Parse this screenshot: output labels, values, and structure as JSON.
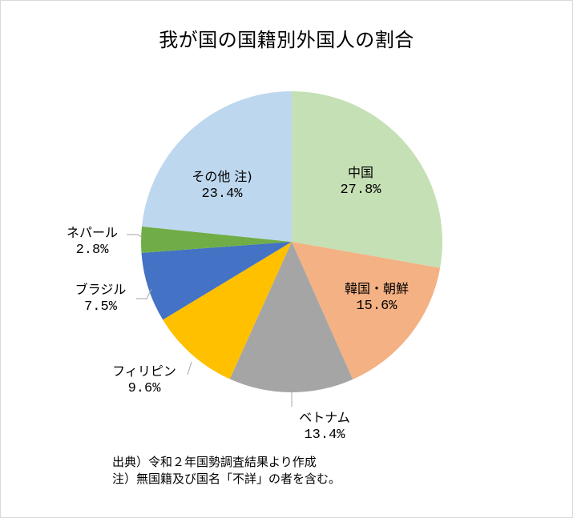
{
  "title": "我が国の国籍別外国人の割合",
  "notes": {
    "source": "出典）令和２年国勢調査結果より作成",
    "note": "注）無国籍及び国名「不詳」の者を含む。"
  },
  "labels": {
    "china": {
      "name": "中国",
      "pct": "27.8%"
    },
    "korea": {
      "name": "韓国・朝鮮",
      "pct": "15.6%"
    },
    "vietnam": {
      "name": "ベトナム",
      "pct": "13.4%"
    },
    "philippines": {
      "name": "フィリピン",
      "pct": "9.6%"
    },
    "brazil": {
      "name": "ブラジル",
      "pct": "7.5%"
    },
    "nepal": {
      "name": "ネパール",
      "pct": "2.8%"
    },
    "other": {
      "name": "その他 注)",
      "pct": "23.4%"
    }
  },
  "chart_data": {
    "type": "pie",
    "title": "我が国の国籍別外国人の割合",
    "categories": [
      "中国",
      "韓国・朝鮮",
      "ベトナム",
      "フィリピン",
      "ブラジル",
      "ネパール",
      "その他 注)"
    ],
    "values": [
      27.8,
      15.6,
      13.4,
      9.6,
      7.5,
      2.8,
      23.4
    ],
    "unit": "%",
    "colors": [
      "#c5e0b4",
      "#f4b183",
      "#a5a5a5",
      "#ffc000",
      "#4472c4",
      "#70ad47",
      "#bdd7ee"
    ],
    "start_angle": "12 o'clock, clockwise",
    "legend": "none (data labels)",
    "annotations": [
      "出典）令和２年国勢調査結果より作成",
      "注）無国籍及び国名「不詳」の者を含む。"
    ]
  }
}
